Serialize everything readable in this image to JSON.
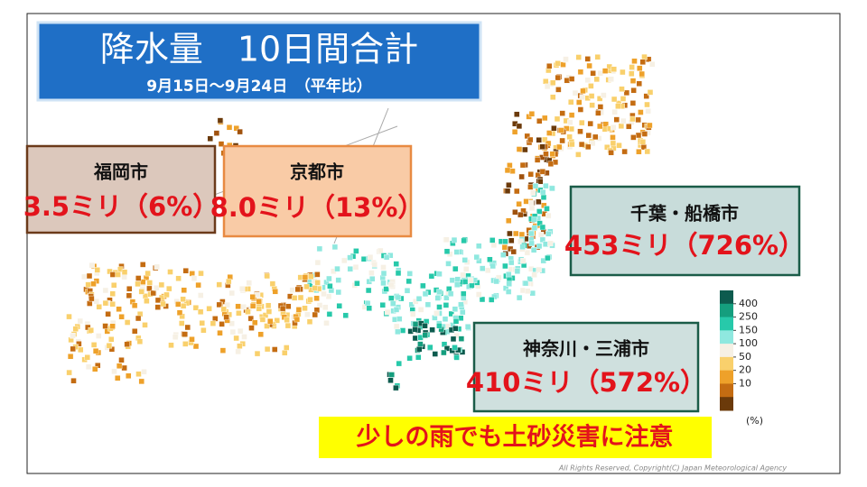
{
  "header": {
    "title": "降水量　10日間合計",
    "subtitle": "9月15日～9月24日　（平年比）"
  },
  "cards": [
    {
      "city": "福岡市",
      "value": "3.5ミリ（6%）"
    },
    {
      "city": "京都市",
      "value": "8.0ミリ（13%）"
    },
    {
      "city": "千葉・船橋市",
      "value": "453ミリ（726%）"
    },
    {
      "city": "神奈川・三浦市",
      "value": "410ミリ（572%）"
    }
  ],
  "legend": {
    "ticks": [
      400,
      250,
      150,
      100,
      50,
      20,
      10
    ],
    "unit": "(%)"
  },
  "warning": "少しの雨でも土砂災害に注意",
  "copyright": "All Rights Reserved, Copyright(C) Japan Meteorological Agency"
}
